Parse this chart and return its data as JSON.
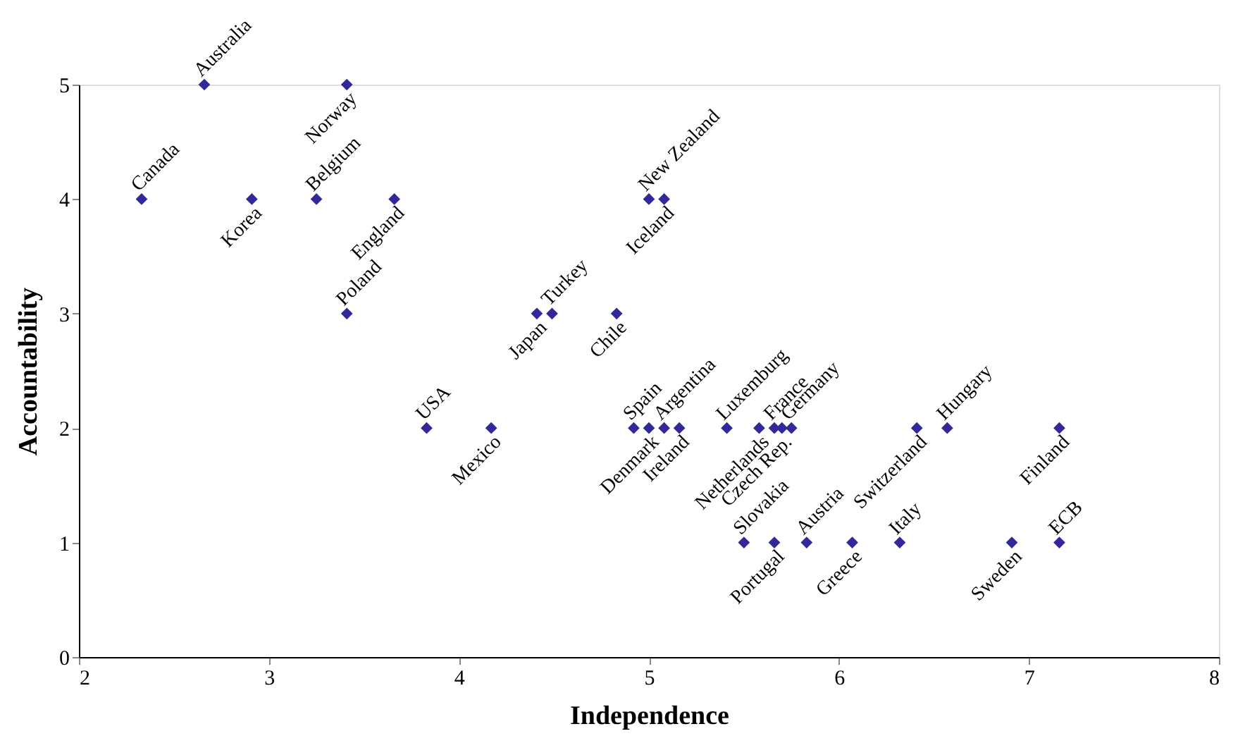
{
  "chart_data": {
    "type": "scatter",
    "xlabel": "Independence",
    "ylabel": "Accountability",
    "x": [
      2.66,
      3.41,
      2.33,
      2.91,
      3.25,
      3.66,
      5.0,
      5.08,
      3.41,
      4.41,
      4.49,
      4.83,
      3.83,
      4.17,
      4.92,
      5.0,
      5.08,
      5.16,
      5.41,
      5.58,
      5.66,
      5.7,
      5.75,
      6.41,
      6.57,
      7.16,
      5.5,
      5.66,
      5.83,
      6.07,
      6.32,
      6.91,
      7.16
    ],
    "series": [
      {
        "color": "#33289a",
        "values": [
          5,
          5,
          4,
          4,
          4,
          4,
          4,
          4,
          3,
          3,
          3,
          3,
          2,
          2,
          2,
          2,
          2,
          2,
          2,
          2,
          2,
          2,
          2,
          2,
          2,
          2,
          1,
          1,
          1,
          1,
          1,
          1,
          1
        ]
      }
    ],
    "annotations": [
      {
        "text": "Australia",
        "x": 2.66,
        "y": 5
      },
      {
        "text": "Norway",
        "x": 3.41,
        "y": 5
      },
      {
        "text": "Canada",
        "x": 2.33,
        "y": 4
      },
      {
        "text": "Korea",
        "x": 2.91,
        "y": 4
      },
      {
        "text": "Belgium",
        "x": 3.25,
        "y": 4
      },
      {
        "text": "England",
        "x": 3.66,
        "y": 4
      },
      {
        "text": "New Zealand",
        "x": 5.0,
        "y": 4
      },
      {
        "text": "Iceland",
        "x": 5.08,
        "y": 4
      },
      {
        "text": "Poland",
        "x": 3.41,
        "y": 3
      },
      {
        "text": "Japan",
        "x": 4.41,
        "y": 3
      },
      {
        "text": "Turkey",
        "x": 4.49,
        "y": 3
      },
      {
        "text": "Chile",
        "x": 4.83,
        "y": 3
      },
      {
        "text": "USA",
        "x": 3.83,
        "y": 2
      },
      {
        "text": "Mexico",
        "x": 4.17,
        "y": 2
      },
      {
        "text": "Spain",
        "x": 4.92,
        "y": 2
      },
      {
        "text": "Denmark",
        "x": 5.0,
        "y": 2
      },
      {
        "text": "Argentina",
        "x": 5.08,
        "y": 2
      },
      {
        "text": "Ireland",
        "x": 5.16,
        "y": 2
      },
      {
        "text": "Luxemburg",
        "x": 5.41,
        "y": 2
      },
      {
        "text": "Netherlands",
        "x": 5.58,
        "y": 2
      },
      {
        "text": "France",
        "x": 5.66,
        "y": 2
      },
      {
        "text": "Czech Rep.",
        "x": 5.7,
        "y": 2
      },
      {
        "text": "Germany",
        "x": 5.75,
        "y": 2
      },
      {
        "text": "Switzerland",
        "x": 6.41,
        "y": 2
      },
      {
        "text": "Hungary",
        "x": 6.57,
        "y": 2
      },
      {
        "text": "Finland",
        "x": 7.16,
        "y": 2
      },
      {
        "text": "Slovakia",
        "x": 5.5,
        "y": 1
      },
      {
        "text": "Portugal",
        "x": 5.66,
        "y": 1
      },
      {
        "text": "Austria",
        "x": 5.83,
        "y": 1
      },
      {
        "text": "Greece",
        "x": 6.07,
        "y": 1
      },
      {
        "text": "Italy",
        "x": 6.32,
        "y": 1
      },
      {
        "text": "Sweden",
        "x": 6.91,
        "y": 1
      },
      {
        "text": "ECB",
        "x": 7.16,
        "y": 1
      }
    ],
    "xlim": [
      2,
      8
    ],
    "ylim": [
      0,
      5
    ],
    "xticks": [
      2,
      3,
      4,
      5,
      6,
      7,
      8
    ],
    "yticks": [
      0,
      1,
      2,
      3,
      4,
      5
    ],
    "marker": "diamond",
    "grid": false,
    "legend": false
  }
}
